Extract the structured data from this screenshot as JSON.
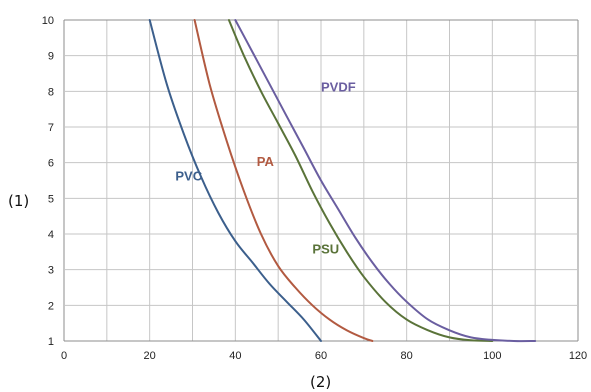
{
  "chart_data": {
    "type": "line",
    "title": "",
    "xlabel": "(2)",
    "ylabel": "(1)",
    "xlim": [
      0,
      120
    ],
    "ylim": [
      1,
      10
    ],
    "xticks": [
      0,
      20,
      40,
      60,
      80,
      100,
      120
    ],
    "yticks": [
      1,
      2,
      3,
      4,
      5,
      6,
      7,
      8,
      9,
      10
    ],
    "grid": true,
    "legend": "none",
    "series": [
      {
        "name": "PVC",
        "color": "#3c5f8c",
        "points": [
          [
            20,
            10
          ],
          [
            24,
            8.2
          ],
          [
            28,
            6.8
          ],
          [
            32,
            5.6
          ],
          [
            36,
            4.6
          ],
          [
            40,
            3.8
          ],
          [
            44,
            3.2
          ],
          [
            48,
            2.6
          ],
          [
            52,
            2.1
          ],
          [
            56,
            1.6
          ],
          [
            60,
            1.0
          ]
        ]
      },
      {
        "name": "PA",
        "color": "#b25a41",
        "points": [
          [
            30.5,
            10
          ],
          [
            34,
            8.2
          ],
          [
            38,
            6.6
          ],
          [
            42,
            5.2
          ],
          [
            46,
            4.0
          ],
          [
            50,
            3.1
          ],
          [
            54,
            2.5
          ],
          [
            58,
            2.0
          ],
          [
            62,
            1.6
          ],
          [
            66,
            1.3
          ],
          [
            70,
            1.08
          ],
          [
            72,
            1.0
          ]
        ]
      },
      {
        "name": "PSU",
        "color": "#5a7339",
        "points": [
          [
            38.5,
            10
          ],
          [
            42,
            9.0
          ],
          [
            46,
            8.0
          ],
          [
            50,
            7.1
          ],
          [
            54,
            6.2
          ],
          [
            58,
            5.2
          ],
          [
            62,
            4.3
          ],
          [
            66,
            3.5
          ],
          [
            70,
            2.8
          ],
          [
            75,
            2.1
          ],
          [
            80,
            1.6
          ],
          [
            85,
            1.3
          ],
          [
            90,
            1.1
          ],
          [
            95,
            1.02
          ],
          [
            100,
            1.0
          ]
        ]
      },
      {
        "name": "PVDF",
        "color": "#6a5ea0",
        "points": [
          [
            40,
            10
          ],
          [
            44,
            9.1
          ],
          [
            48,
            8.2
          ],
          [
            52,
            7.3
          ],
          [
            56,
            6.4
          ],
          [
            60,
            5.5
          ],
          [
            64,
            4.7
          ],
          [
            68,
            3.9
          ],
          [
            72,
            3.2
          ],
          [
            76,
            2.6
          ],
          [
            80,
            2.1
          ],
          [
            85,
            1.6
          ],
          [
            90,
            1.3
          ],
          [
            95,
            1.1
          ],
          [
            100,
            1.03
          ],
          [
            105,
            1.0
          ],
          [
            110,
            1.0
          ]
        ]
      }
    ],
    "annotations": [
      {
        "text": "PVC",
        "x": 26,
        "y": 5.5,
        "color": "#3c5f8c"
      },
      {
        "text": "PA",
        "x": 45,
        "y": 5.9,
        "color": "#b25a41"
      },
      {
        "text": "PSU",
        "x": 58,
        "y": 3.45,
        "color": "#5a7339"
      },
      {
        "text": "PVDF",
        "x": 60,
        "y": 8.0,
        "color": "#6a5ea0"
      }
    ]
  }
}
